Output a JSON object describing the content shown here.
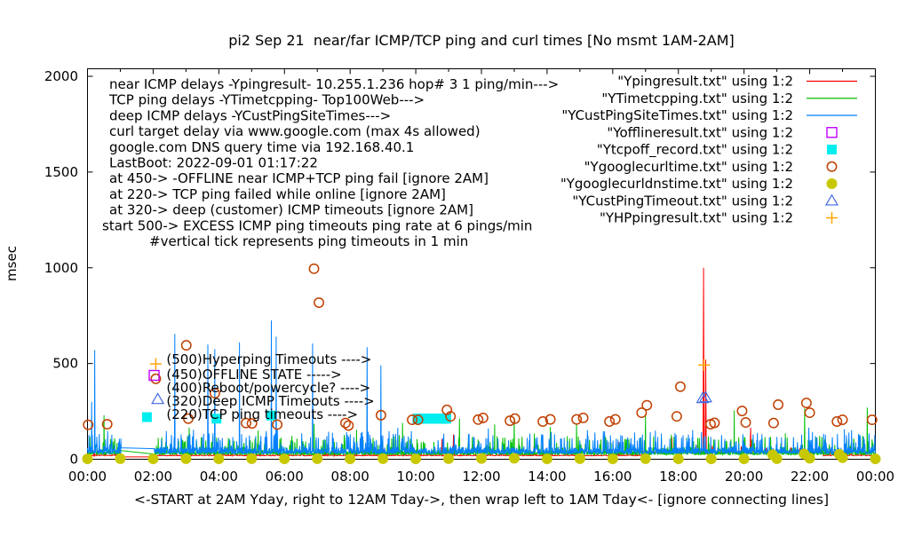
{
  "chart_data": {
    "type": "line+scatter",
    "title": "pi2 Sep 21  near/far ICMP/TCP ping and curl times [No msmt 1AM-2AM]",
    "xlabel": "<-START at 2AM Yday, right to 12AM Tday->, then wrap left to 1AM Tday<- [ignore connecting lines]",
    "ylabel": "msec",
    "x_hours_range": [
      0,
      24
    ],
    "ylim": [
      0,
      2040
    ],
    "y_tick_values": [
      0,
      500,
      1000,
      1500,
      2000
    ],
    "x_major_tick_labels": [
      "00:00",
      "02:00",
      "04:00",
      "06:00",
      "08:00",
      "10:00",
      "12:00",
      "14:00",
      "16:00",
      "18:00",
      "20:00",
      "22:00",
      "00:00"
    ],
    "gap_hours": [
      1.03,
      2.03
    ],
    "line_series": [
      {
        "name": "Ypingresult",
        "legend": "\"Ypingresult.txt\" using 1:2",
        "color": "#ff0000",
        "seed": 101,
        "step_min": 1.0,
        "base": 18,
        "amp": 6,
        "burst_chance": 0.03,
        "burst_amp": 30,
        "elevated": [
          16.9,
          22.4,
          36
        ],
        "gap_values": [
          12,
          12
        ],
        "spikes": [
          [
            0.3,
            45
          ],
          [
            4.4,
            55
          ],
          [
            7.5,
            60
          ],
          [
            10.8,
            105
          ],
          [
            11.15,
            130
          ],
          [
            13.6,
            65
          ],
          [
            16.2,
            90
          ],
          [
            17.8,
            115
          ],
          [
            18.77,
            1000
          ],
          [
            18.84,
            520
          ],
          [
            20.2,
            165
          ],
          [
            22.6,
            70
          ]
        ]
      },
      {
        "name": "YTimetcpping",
        "legend": "\"YTimetcpping.txt\" using 1:2",
        "color": "#00c000",
        "seed": 202,
        "step_min": 0.55,
        "base": 24,
        "amp": 26,
        "burst_chance": 0.11,
        "burst_amp": 68,
        "gap_values": [
          45,
          27
        ],
        "spikes": [
          [
            0.5,
            230
          ],
          [
            3.1,
            165
          ],
          [
            5.2,
            150
          ],
          [
            6.9,
            185
          ],
          [
            8.2,
            155
          ],
          [
            9.6,
            190
          ],
          [
            11.33,
            212
          ],
          [
            12.4,
            182
          ],
          [
            13.0,
            218
          ],
          [
            14.1,
            168
          ],
          [
            14.9,
            186
          ],
          [
            17.0,
            237
          ],
          [
            19.7,
            255
          ],
          [
            21.85,
            265
          ],
          [
            23.75,
            270
          ]
        ]
      },
      {
        "name": "YCustPingSiteTimes",
        "legend": "\"YCustPingSiteTimes.txt\" using 1:2",
        "color": "#0080ff",
        "seed": 303,
        "step_min": 0.55,
        "base": 30,
        "amp": 34,
        "burst_chance": 0.13,
        "burst_amp": 80,
        "gap_values": [
          60,
          55
        ],
        "spikes": [
          [
            0.13,
            300
          ],
          [
            0.22,
            570
          ],
          [
            2.66,
            655
          ],
          [
            3.67,
            600
          ],
          [
            3.88,
            575
          ],
          [
            4.63,
            610
          ],
          [
            5.6,
            725
          ],
          [
            5.75,
            640
          ],
          [
            6.86,
            605
          ],
          [
            8.52,
            585
          ],
          [
            8.94,
            490
          ]
        ]
      }
    ],
    "scatter_series": [
      {
        "name": "Yofflineresult",
        "legend": "\"Yofflineresult.txt\" using 1:2",
        "color": "#c000ff",
        "marker": "open-square",
        "points": []
      },
      {
        "name": "Ytcpoff_record",
        "legend": "\"Ytcpoff_record.txt\" using 1:2",
        "color": "#00eeee",
        "marker": "filled-square",
        "points": [
          [
            3.93,
            212
          ],
          [
            5.6,
            228
          ],
          [
            10.05,
            212
          ],
          [
            10.09,
            212
          ],
          [
            10.13,
            212
          ],
          [
            10.17,
            212
          ],
          [
            10.21,
            212
          ],
          [
            10.25,
            212
          ],
          [
            10.29,
            212
          ],
          [
            10.33,
            212
          ],
          [
            10.37,
            212
          ],
          [
            10.41,
            212
          ],
          [
            10.45,
            212
          ],
          [
            10.49,
            212
          ],
          [
            10.53,
            212
          ],
          [
            10.57,
            212
          ],
          [
            10.61,
            212
          ],
          [
            10.65,
            212
          ],
          [
            10.69,
            212
          ],
          [
            10.73,
            212
          ],
          [
            10.77,
            212
          ],
          [
            10.81,
            212
          ],
          [
            10.85,
            212
          ],
          [
            10.89,
            212
          ],
          [
            10.93,
            212
          ]
        ]
      },
      {
        "name": "Ygooglecurltime",
        "legend": "\"Ygooglecurltime.txt\" using 1:2",
        "color": "#c04000",
        "marker": "open-circle",
        "points": [
          [
            0.02,
            180
          ],
          [
            0.6,
            183
          ],
          [
            2.08,
            420
          ],
          [
            3.01,
            595
          ],
          [
            3.07,
            212
          ],
          [
            3.88,
            345
          ],
          [
            4.83,
            189
          ],
          [
            5.01,
            187
          ],
          [
            5.78,
            181
          ],
          [
            6.9,
            995
          ],
          [
            7.05,
            818
          ],
          [
            7.86,
            189
          ],
          [
            7.95,
            176
          ],
          [
            8.94,
            230
          ],
          [
            9.89,
            206
          ],
          [
            10.07,
            206
          ],
          [
            10.95,
            258
          ],
          [
            11.06,
            224
          ],
          [
            11.9,
            207
          ],
          [
            12.05,
            216
          ],
          [
            12.87,
            201
          ],
          [
            13.02,
            212
          ],
          [
            13.87,
            197
          ],
          [
            14.1,
            208
          ],
          [
            14.9,
            208
          ],
          [
            15.1,
            216
          ],
          [
            15.9,
            197
          ],
          [
            16.08,
            208
          ],
          [
            16.88,
            243
          ],
          [
            17.04,
            282
          ],
          [
            17.95,
            224
          ],
          [
            18.06,
            379
          ],
          [
            18.98,
            183
          ],
          [
            19.1,
            190
          ],
          [
            19.94,
            252
          ],
          [
            20.05,
            192
          ],
          [
            20.9,
            189
          ],
          [
            21.04,
            285
          ],
          [
            21.9,
            294
          ],
          [
            22.0,
            243
          ],
          [
            22.83,
            197
          ],
          [
            23.0,
            206
          ],
          [
            23.9,
            206
          ]
        ]
      },
      {
        "name": "Ygooglecurldnstime",
        "legend": "\"Ygooglecurldnstime.txt\" using 1:2",
        "color": "#c8c800",
        "marker": "filled-circle",
        "points": [
          [
            0,
            2
          ],
          [
            1,
            3
          ],
          [
            2,
            2
          ],
          [
            3,
            3
          ],
          [
            4,
            2
          ],
          [
            5,
            3
          ],
          [
            6,
            2
          ],
          [
            7,
            3
          ],
          [
            8,
            2
          ],
          [
            9,
            3
          ],
          [
            10,
            2
          ],
          [
            11,
            3
          ],
          [
            12,
            4
          ],
          [
            13,
            5
          ],
          [
            14,
            2
          ],
          [
            15,
            3
          ],
          [
            16,
            2
          ],
          [
            17,
            3
          ],
          [
            18,
            2
          ],
          [
            19,
            2
          ],
          [
            20,
            2
          ],
          [
            20.87,
            24
          ],
          [
            21,
            3
          ],
          [
            21.83,
            28
          ],
          [
            22,
            5
          ],
          [
            22.9,
            26
          ],
          [
            23,
            8
          ],
          [
            24,
            2
          ]
        ]
      },
      {
        "name": "YCustPingTimeout",
        "legend": "\"YCustPingTimeout.txt\" using 1:2",
        "color": "#4169e1",
        "marker": "open-triangle",
        "points": [
          [
            18.74,
            318
          ],
          [
            18.83,
            322
          ]
        ]
      },
      {
        "name": "YHPpingresult",
        "legend": "\"YHPpingresult.txt\" using 1:2",
        "color": "#ffa500",
        "marker": "plus",
        "points": [
          [
            18.78,
            492
          ]
        ]
      }
    ],
    "info_lines": [
      {
        "text": "near ICMP delays -Ypingresult- 10.255.1.236 hop# 3 1 ping/min--->",
        "dx": 0
      },
      {
        "text": "TCP ping delays -YTimetcpping- Top100Web--->",
        "dx": 0
      },
      {
        "text": "deep ICMP delays -YCustPingSiteTimes--->",
        "dx": 0
      },
      {
        "text": "curl target delay via www.google.com (max 4s allowed)",
        "dx": 0
      },
      {
        "text": "google.com DNS query time via 192.168.40.1",
        "dx": 0
      },
      {
        "text": "LastBoot: 2022-09-01 01:17:22",
        "dx": 0
      },
      {
        "text": "at 450-> -OFFLINE near ICMP+TCP ping fail [ignore 2AM]",
        "dx": 0
      },
      {
        "text": "at 220-> TCP ping failed while online [ignore 2AM]",
        "dx": 0
      },
      {
        "text": "at 320-> deep (customer) ICMP timeouts [ignore 2AM]",
        "dx": 0
      },
      {
        "text": "start 500-> EXCESS ICMP ping timeouts ping rate at 6 pings/min",
        "dx": -8
      },
      {
        "text": "#vertical tick represents ping timeouts in 1 min",
        "dx": 45
      }
    ],
    "threshold_labels": [
      {
        "text": "(500)Hyperping Timeouts ---->",
        "marker": "plus",
        "color": "#ffa500",
        "marker_hour": 2.08,
        "marker_value": 498,
        "text_value": 498
      },
      {
        "text": "(450)OFFLINE STATE ----->",
        "marker": "open-square",
        "color": "#c000ff",
        "marker_hour": 2.03,
        "marker_value": 438,
        "text_value": 419
      },
      {
        "text": "(400)Reboot/powercycle? ---->",
        "marker": "",
        "color": "",
        "marker_hour": 0,
        "marker_value": 0,
        "text_value": 350
      },
      {
        "text": "(320)Deep ICMP Timeouts ---->",
        "marker": "open-triangle",
        "color": "#4169e1",
        "marker_hour": 2.14,
        "marker_value": 313,
        "text_value": 281
      },
      {
        "text": "(220)TCP ping timeouts ---->",
        "marker": "filled-square",
        "color": "#00eeee",
        "marker_hour": 1.81,
        "marker_value": 220,
        "text_value": 211
      }
    ]
  }
}
